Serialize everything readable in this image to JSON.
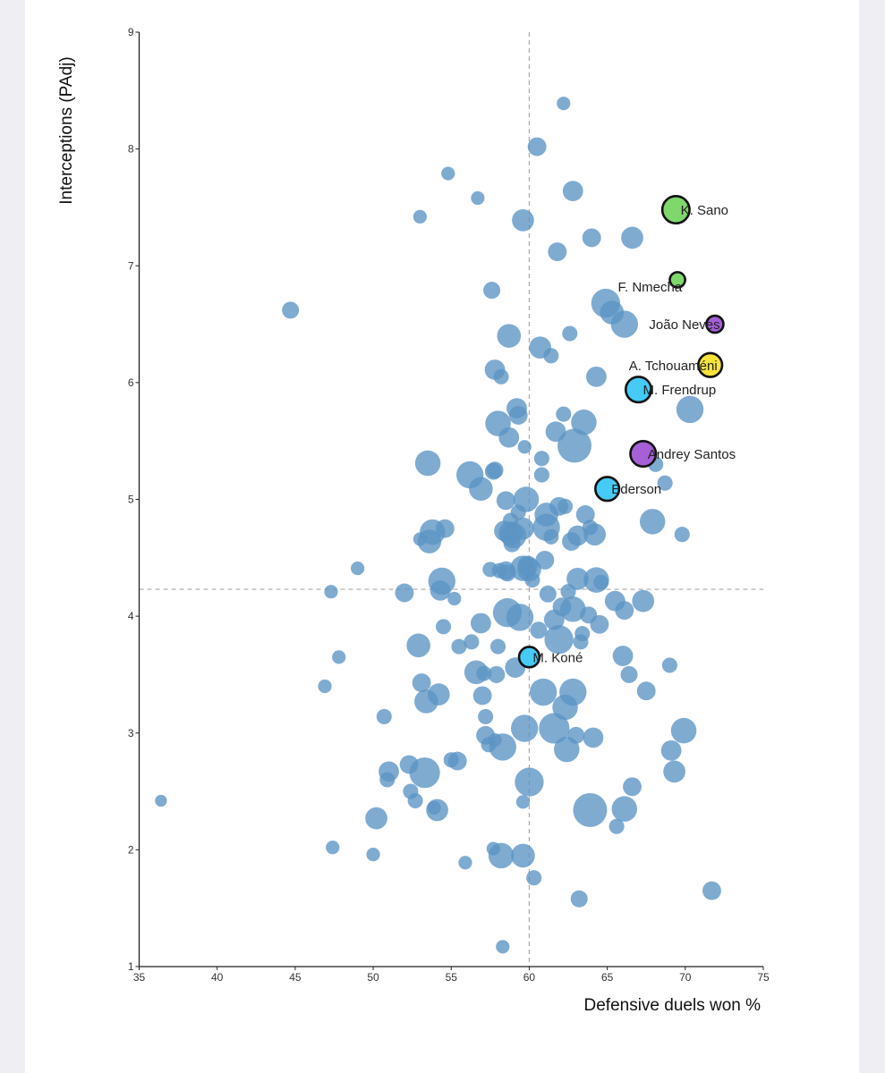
{
  "chart_data": {
    "type": "scatter",
    "xlabel": "Defensive duels won %",
    "ylabel": "Interceptions (PAdj)",
    "xlim": [
      35,
      75
    ],
    "ylim": [
      1,
      9
    ],
    "xticks": [
      35,
      40,
      45,
      50,
      55,
      60,
      65,
      70,
      75
    ],
    "yticks": [
      1,
      2,
      3,
      4,
      5,
      6,
      7,
      8,
      9
    ],
    "reference_lines": {
      "x": 60,
      "y": 4.23
    },
    "grid": false,
    "colors": {
      "background_points": "#5b93c4",
      "green": "#7ed86c",
      "purple": "#a65fd6",
      "yellow": "#f6e33a",
      "cyan": "#45cbf5",
      "outline": "#111111",
      "reference_line": "#aaaaaa"
    },
    "highlighted": [
      {
        "label": "K. Sano",
        "x": 69.4,
        "y": 7.48,
        "size": 1.6,
        "color": "green"
      },
      {
        "label": "F. Nmecha",
        "x": 69.5,
        "y": 6.88,
        "size": 0.9,
        "color": "green"
      },
      {
        "label": "João Neves",
        "x": 71.9,
        "y": 6.5,
        "size": 1.0,
        "color": "purple"
      },
      {
        "label": "A. Tchouaméni",
        "x": 71.6,
        "y": 6.15,
        "size": 1.4,
        "color": "yellow"
      },
      {
        "label": "M. Frendrup",
        "x": 67.0,
        "y": 5.94,
        "size": 1.5,
        "color": "cyan"
      },
      {
        "label": "Andrey Santos",
        "x": 67.3,
        "y": 5.39,
        "size": 1.5,
        "color": "purple"
      },
      {
        "label": "Ederson",
        "x": 65.0,
        "y": 5.09,
        "size": 1.4,
        "color": "cyan"
      },
      {
        "label": "M. Koné",
        "x": 60.0,
        "y": 3.65,
        "size": 1.2,
        "color": "cyan"
      }
    ],
    "points": [
      [
        36.4,
        2.42,
        0.7
      ],
      [
        44.7,
        6.62,
        1.0
      ],
      [
        47.3,
        4.21,
        0.8
      ],
      [
        47.4,
        2.02,
        0.8
      ],
      [
        47.8,
        3.65,
        0.8
      ],
      [
        46.9,
        3.4,
        0.8
      ],
      [
        49.0,
        4.41,
        0.8
      ],
      [
        50.0,
        1.96,
        0.8
      ],
      [
        50.2,
        2.27,
        1.3
      ],
      [
        50.7,
        3.14,
        0.9
      ],
      [
        51.0,
        2.67,
        1.2
      ],
      [
        50.9,
        2.6,
        0.9
      ],
      [
        52.0,
        4.2,
        1.1
      ],
      [
        52.3,
        2.73,
        1.1
      ],
      [
        52.4,
        2.5,
        0.9
      ],
      [
        52.7,
        2.42,
        0.9
      ],
      [
        52.9,
        3.75,
        1.4
      ],
      [
        53.0,
        4.66,
        0.8
      ],
      [
        53.0,
        7.42,
        0.8
      ],
      [
        53.1,
        3.43,
        1.1
      ],
      [
        53.3,
        2.66,
        1.8
      ],
      [
        53.4,
        3.27,
        1.4
      ],
      [
        53.5,
        5.31,
        1.5
      ],
      [
        53.6,
        4.64,
        1.4
      ],
      [
        53.8,
        4.72,
        1.5
      ],
      [
        53.9,
        2.36,
        0.8
      ],
      [
        54.1,
        2.34,
        1.3
      ],
      [
        54.2,
        3.33,
        1.3
      ],
      [
        54.3,
        4.22,
        1.2
      ],
      [
        54.4,
        4.3,
        1.6
      ],
      [
        54.5,
        3.91,
        0.9
      ],
      [
        54.6,
        4.75,
        1.1
      ],
      [
        54.8,
        7.79,
        0.8
      ],
      [
        55.0,
        2.77,
        0.9
      ],
      [
        55.2,
        4.15,
        0.8
      ],
      [
        55.4,
        2.76,
        1.1
      ],
      [
        55.5,
        3.74,
        0.9
      ],
      [
        55.9,
        1.89,
        0.8
      ],
      [
        56.2,
        5.21,
        1.6
      ],
      [
        56.3,
        3.78,
        0.9
      ],
      [
        56.6,
        3.52,
        1.4
      ],
      [
        56.7,
        7.58,
        0.8
      ],
      [
        56.9,
        5.09,
        1.4
      ],
      [
        56.9,
        3.94,
        1.2
      ],
      [
        57.0,
        3.32,
        1.1
      ],
      [
        57.1,
        3.51,
        0.9
      ],
      [
        57.2,
        3.14,
        0.9
      ],
      [
        57.2,
        2.98,
        1.1
      ],
      [
        57.4,
        2.9,
        0.9
      ],
      [
        57.5,
        4.4,
        0.9
      ],
      [
        57.6,
        6.79,
        1.0
      ],
      [
        57.7,
        2.01,
        0.8
      ],
      [
        57.7,
        5.24,
        1.0
      ],
      [
        57.8,
        2.94,
        0.8
      ],
      [
        57.8,
        5.25,
        1.0
      ],
      [
        57.8,
        6.11,
        1.2
      ],
      [
        57.9,
        3.5,
        1.0
      ],
      [
        58.0,
        3.74,
        0.9
      ],
      [
        58.0,
        5.65,
        1.5
      ],
      [
        58.1,
        4.39,
        0.9
      ],
      [
        58.2,
        6.05,
        0.9
      ],
      [
        58.2,
        1.95,
        1.5
      ],
      [
        58.3,
        1.17,
        0.8
      ],
      [
        58.3,
        2.88,
        1.6
      ],
      [
        58.4,
        4.73,
        1.2
      ],
      [
        58.5,
        4.39,
        1.1
      ],
      [
        58.5,
        4.99,
        1.1
      ],
      [
        58.6,
        4.37,
        1.0
      ],
      [
        58.6,
        4.03,
        1.7
      ],
      [
        58.7,
        6.4,
        1.4
      ],
      [
        58.7,
        5.53,
        1.2
      ],
      [
        58.8,
        4.82,
        0.9
      ],
      [
        58.8,
        4.71,
        1.4
      ],
      [
        58.9,
        4.62,
        1.0
      ],
      [
        59.0,
        4.69,
        1.5
      ],
      [
        59.1,
        3.56,
        1.2
      ],
      [
        59.2,
        5.78,
        1.2
      ],
      [
        59.3,
        4.89,
        0.9
      ],
      [
        59.3,
        5.72,
        1.1
      ],
      [
        59.4,
        3.99,
        1.6
      ],
      [
        59.6,
        4.41,
        1.5
      ],
      [
        59.6,
        4.75,
        1.3
      ],
      [
        59.6,
        7.39,
        1.3
      ],
      [
        59.6,
        2.41,
        0.8
      ],
      [
        59.6,
        1.95,
        1.4
      ],
      [
        59.7,
        5.45,
        0.8
      ],
      [
        59.7,
        3.04,
        1.6
      ],
      [
        59.8,
        5.0,
        1.5
      ],
      [
        59.9,
        4.43,
        1.2
      ],
      [
        60.0,
        4.4,
        1.4
      ],
      [
        60.0,
        2.58,
        1.7
      ],
      [
        60.2,
        4.31,
        0.9
      ],
      [
        60.3,
        1.76,
        0.9
      ],
      [
        60.5,
        8.02,
        1.1
      ],
      [
        60.6,
        3.88,
        1.0
      ],
      [
        60.7,
        6.3,
        1.3
      ],
      [
        60.8,
        5.35,
        0.9
      ],
      [
        60.8,
        5.21,
        0.9
      ],
      [
        60.9,
        3.35,
        1.6
      ],
      [
        61.0,
        4.48,
        1.1
      ],
      [
        61.1,
        4.87,
        1.4
      ],
      [
        61.1,
        4.76,
        1.6
      ],
      [
        61.2,
        4.19,
        1.0
      ],
      [
        61.4,
        4.68,
        0.9
      ],
      [
        61.4,
        6.23,
        0.9
      ],
      [
        61.6,
        3.04,
        1.8
      ],
      [
        61.6,
        3.97,
        1.2
      ],
      [
        61.7,
        5.58,
        1.2
      ],
      [
        61.8,
        7.12,
        1.1
      ],
      [
        61.9,
        3.8,
        1.7
      ],
      [
        61.9,
        4.94,
        1.1
      ],
      [
        62.1,
        4.08,
        1.1
      ],
      [
        62.2,
        5.73,
        0.9
      ],
      [
        62.2,
        8.39,
        0.8
      ],
      [
        62.3,
        3.22,
        1.5
      ],
      [
        62.3,
        4.94,
        0.9
      ],
      [
        62.4,
        2.86,
        1.5
      ],
      [
        62.5,
        4.21,
        0.9
      ],
      [
        62.6,
        6.42,
        0.9
      ],
      [
        62.7,
        4.64,
        1.1
      ],
      [
        62.8,
        7.64,
        1.2
      ],
      [
        62.8,
        3.35,
        1.6
      ],
      [
        62.8,
        4.06,
        1.5
      ],
      [
        62.9,
        5.46,
        2.0
      ],
      [
        63.0,
        2.98,
        1.0
      ],
      [
        63.1,
        4.69,
        1.2
      ],
      [
        63.1,
        4.32,
        1.3
      ],
      [
        63.2,
        1.58,
        1.0
      ],
      [
        63.3,
        3.78,
        0.9
      ],
      [
        63.4,
        3.85,
        0.9
      ],
      [
        63.5,
        5.66,
        1.5
      ],
      [
        63.6,
        4.87,
        1.1
      ],
      [
        63.8,
        4.01,
        1.0
      ],
      [
        63.9,
        4.76,
        0.9
      ],
      [
        63.9,
        2.34,
        2.0
      ],
      [
        64.0,
        7.24,
        1.1
      ],
      [
        64.1,
        2.96,
        1.2
      ],
      [
        64.2,
        4.7,
        1.3
      ],
      [
        64.3,
        4.31,
        1.5
      ],
      [
        64.3,
        6.05,
        1.2
      ],
      [
        64.5,
        3.93,
        1.1
      ],
      [
        64.6,
        4.29,
        0.9
      ],
      [
        64.9,
        6.68,
        1.7
      ],
      [
        65.3,
        6.6,
        1.4
      ],
      [
        65.5,
        4.13,
        1.2
      ],
      [
        65.6,
        2.2,
        0.9
      ],
      [
        66.0,
        3.66,
        1.2
      ],
      [
        66.1,
        6.5,
        1.6
      ],
      [
        66.1,
        2.35,
        1.5
      ],
      [
        66.1,
        4.05,
        1.1
      ],
      [
        66.4,
        3.5,
        1.0
      ],
      [
        66.6,
        7.24,
        1.3
      ],
      [
        66.6,
        2.54,
        1.1
      ],
      [
        67.3,
        4.13,
        1.3
      ],
      [
        67.5,
        3.36,
        1.1
      ],
      [
        67.9,
        4.81,
        1.5
      ],
      [
        68.1,
        5.3,
        0.9
      ],
      [
        68.7,
        5.14,
        0.9
      ],
      [
        69.0,
        3.58,
        0.9
      ],
      [
        69.1,
        2.85,
        1.2
      ],
      [
        69.3,
        2.67,
        1.3
      ],
      [
        69.8,
        4.7,
        0.9
      ],
      [
        69.9,
        3.02,
        1.5
      ],
      [
        70.3,
        5.77,
        1.6
      ],
      [
        71.7,
        1.65,
        1.1
      ]
    ]
  }
}
